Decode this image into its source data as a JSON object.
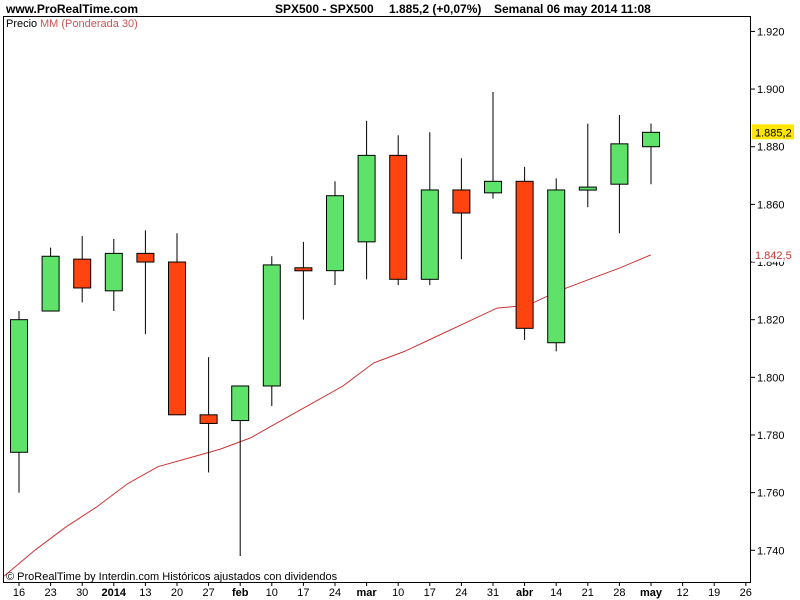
{
  "header": {
    "site": "www.ProRealTime.com",
    "instrument": "SPX500 - SPX500",
    "quote": "1.885,2 (+0,07%)",
    "period": "Semanal  06 may 2014 11:08"
  },
  "legend": {
    "price_label": "Precio",
    "ma_label": "MM (Ponderada 30)"
  },
  "footer": {
    "copyright": "© ProRealTime by Interdin.com  Históricos ajustados con dividendos"
  },
  "colors": {
    "up": "#5fe26a",
    "down": "#ff4410",
    "wick": "#000000",
    "ma_line": "#cc3333",
    "frame": "#000000",
    "last_price_bg": "#ffe600",
    "ma_tag_text": "#cc3333"
  },
  "chart_data": {
    "type": "candlestick",
    "title": "",
    "y_ticks": [
      {
        "value": 1740,
        "label": "1.740"
      },
      {
        "value": 1760,
        "label": "1.760"
      },
      {
        "value": 1780,
        "label": "1.780"
      },
      {
        "value": 1800,
        "label": "1.800"
      },
      {
        "value": 1820,
        "label": "1.820"
      },
      {
        "value": 1840,
        "label": "1.840"
      },
      {
        "value": 1860,
        "label": "1.860"
      },
      {
        "value": 1880,
        "label": "1.880"
      },
      {
        "value": 1900,
        "label": "1.900"
      },
      {
        "value": 1920,
        "label": "1.920"
      }
    ],
    "ylim": [
      1729,
      1925
    ],
    "x_ticks": [
      "16",
      "23",
      "30",
      "2014",
      "13",
      "20",
      "27",
      "feb",
      "10",
      "17",
      "24",
      "mar",
      "10",
      "17",
      "24",
      "31",
      "abr",
      "14",
      "21",
      "28",
      "may",
      "12",
      "19",
      "26"
    ],
    "x_bold_ticks": [
      "2014",
      "feb",
      "mar",
      "abr",
      "may"
    ],
    "candles": [
      {
        "week": "16",
        "open": 1774,
        "high": 1823,
        "low": 1760,
        "close": 1820
      },
      {
        "week": "23",
        "open": 1823,
        "high": 1845,
        "low": 1823,
        "close": 1842
      },
      {
        "week": "30",
        "open": 1841,
        "high": 1849,
        "low": 1826,
        "close": 1831
      },
      {
        "week": "2014",
        "open": 1830,
        "high": 1848,
        "low": 1823,
        "close": 1843
      },
      {
        "week": "13",
        "open": 1843,
        "high": 1851,
        "low": 1815,
        "close": 1840
      },
      {
        "week": "20",
        "open": 1840,
        "high": 1850,
        "low": 1787,
        "close": 1787
      },
      {
        "week": "27",
        "open": 1787,
        "high": 1807,
        "low": 1767,
        "close": 1784
      },
      {
        "week": "feb",
        "open": 1785,
        "high": 1797,
        "low": 1738,
        "close": 1797
      },
      {
        "week": "10",
        "open": 1797,
        "high": 1842,
        "low": 1790,
        "close": 1839
      },
      {
        "week": "17",
        "open": 1838,
        "high": 1847,
        "low": 1820,
        "close": 1837
      },
      {
        "week": "24",
        "open": 1837,
        "high": 1868,
        "low": 1832,
        "close": 1863
      },
      {
        "week": "mar",
        "open": 1847,
        "high": 1889,
        "low": 1834,
        "close": 1877
      },
      {
        "week": "10",
        "open": 1877,
        "high": 1884,
        "low": 1832,
        "close": 1834
      },
      {
        "week": "17",
        "open": 1834,
        "high": 1885,
        "low": 1832,
        "close": 1865
      },
      {
        "week": "24",
        "open": 1865,
        "high": 1876,
        "low": 1841,
        "close": 1857
      },
      {
        "week": "31",
        "open": 1864,
        "high": 1899,
        "low": 1862,
        "close": 1868
      },
      {
        "week": "abr",
        "open": 1868,
        "high": 1873,
        "low": 1813,
        "close": 1817
      },
      {
        "week": "14",
        "open": 1812,
        "high": 1869,
        "low": 1809,
        "close": 1865
      },
      {
        "week": "21",
        "open": 1865,
        "high": 1888,
        "low": 1859,
        "close": 1866
      },
      {
        "week": "28",
        "open": 1867,
        "high": 1891,
        "low": 1850,
        "close": 1881
      },
      {
        "week": "may",
        "open": 1880,
        "high": 1888,
        "low": 1867,
        "close": 1885
      }
    ],
    "moving_average": {
      "name": "MM (Ponderada 30)",
      "values": [
        1731,
        1740,
        1748,
        1755,
        1763,
        1769,
        1772,
        1775,
        1779,
        1785,
        1791,
        1797,
        1805,
        1809,
        1814,
        1819,
        1824,
        1825,
        1830,
        1834,
        1838,
        1842.5
      ]
    },
    "last_price_label": "1.885,2",
    "ma_last_label": "1.842,5"
  }
}
